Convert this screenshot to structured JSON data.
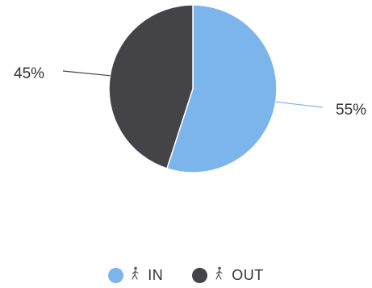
{
  "chart_data": {
    "type": "pie",
    "title": "",
    "legend_position": "bottom",
    "slices": [
      {
        "name": "IN",
        "value": 55,
        "label": "55%",
        "color": "#7cb5ec"
      },
      {
        "name": "OUT",
        "value": 45,
        "label": "45%",
        "color": "#434348"
      }
    ]
  },
  "legend": {
    "items": [
      {
        "label": "IN",
        "icon": "person-walking-icon",
        "icon_glyph": "🚶",
        "color": "#7cb5ec"
      },
      {
        "label": "OUT",
        "icon": "person-walking-icon",
        "icon_glyph": "🚶",
        "color": "#434348"
      }
    ]
  }
}
